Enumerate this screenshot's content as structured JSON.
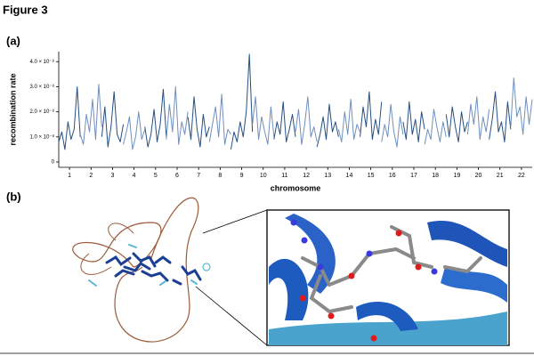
{
  "figure_title": "Figure 3",
  "panel_labels": [
    "(a)",
    "(b)"
  ],
  "chart_data": {
    "type": "line",
    "ylabel": "recombination rate",
    "xlabel": "chromosome",
    "categories": [
      "1",
      "2",
      "3",
      "4",
      "5",
      "6",
      "7",
      "8",
      "9",
      "10",
      "11",
      "12",
      "13",
      "14",
      "15",
      "16",
      "17",
      "18",
      "19",
      "20",
      "21",
      "22"
    ],
    "colors": [
      "#244f84",
      "#6f8fbf"
    ],
    "values": [
      [
        8e-09,
        1.2e-08,
        5e-09,
        1.6e-08,
        9e-09,
        1.3e-08,
        3e-08,
        1e-08
      ],
      [
        1.1e-08,
        7e-09,
        1.9e-08,
        1.2e-08,
        2.5e-08,
        9e-09,
        3.1e-08,
        1.4e-08
      ],
      [
        1e-08,
        2.2e-08,
        6e-09,
        1.4e-08,
        2.8e-08,
        1.1e-08,
        8e-09,
        1.5e-08
      ],
      [
        7e-09,
        1.2e-08,
        1.8e-08,
        5e-09,
        1e-08,
        2e-08,
        9e-09,
        1.3e-08
      ],
      [
        1.4e-08,
        6e-09,
        1.1e-08,
        2.1e-08,
        8e-09,
        1.5e-08,
        2.9e-08,
        1e-08
      ],
      [
        9e-09,
        2.3e-08,
        1.2e-08,
        3e-08,
        7e-09,
        1.6e-08,
        1.1e-08,
        2e-08
      ],
      [
        1.8e-08,
        9e-09,
        2.6e-08,
        1.3e-08,
        6e-09,
        1.9e-08,
        1e-08,
        1.4e-08
      ],
      [
        8e-09,
        1.5e-08,
        2.2e-08,
        1e-08,
        2.7e-08,
        7e-09,
        1.3e-08,
        1.1e-08
      ],
      [
        5e-09,
        1.2e-08,
        8e-09,
        1.6e-08,
        1e-08,
        2e-08,
        4.3e-08,
        1.2e-08
      ],
      [
        1.5e-08,
        2.6e-08,
        9e-09,
        1.8e-08,
        1.2e-08,
        7e-09,
        2.2e-08,
        1e-08
      ],
      [
        9e-09,
        1.6e-08,
        1.1e-08,
        2.4e-08,
        8e-09,
        1.3e-08,
        1.9e-08,
        1e-08
      ],
      [
        1.2e-08,
        2.1e-08,
        7e-09,
        1.5e-08,
        2.6e-08,
        1e-08,
        1.4e-08,
        8e-09
      ],
      [
        6e-09,
        1.1e-08,
        1.8e-08,
        9e-09,
        2.3e-08,
        1.2e-08,
        1.6e-08,
        1e-08
      ],
      [
        1.3e-08,
        8e-09,
        2e-08,
        1.1e-08,
        2.5e-08,
        9e-09,
        1.5e-08,
        1.2e-08
      ],
      [
        1e-08,
        2.2e-08,
        1.4e-08,
        2.8e-08,
        9e-09,
        1.7e-08,
        1.1e-08,
        2.4e-08
      ],
      [
        8e-09,
        1.5e-08,
        1e-08,
        2.3e-08,
        1.2e-08,
        6e-09,
        1.8e-08,
        1.1e-08
      ],
      [
        1.6e-08,
        9e-09,
        2.4e-08,
        1.1e-08,
        1.7e-08,
        8e-09,
        2e-08,
        1.3e-08
      ],
      [
        7e-09,
        1.3e-08,
        9e-09,
        2.1e-08,
        1.4e-08,
        8e-09,
        1.6e-08,
        1e-08
      ],
      [
        1.9e-08,
        1e-08,
        2.2e-08,
        1.4e-08,
        8e-09,
        2e-08,
        1.2e-08,
        1.6e-08
      ],
      [
        1.1e-08,
        2.3e-08,
        1.5e-08,
        2.6e-08,
        9e-09,
        1.8e-08,
        1.2e-08,
        2.1e-08
      ],
      [
        9e-09,
        1.7e-08,
        2.8e-08,
        1.2e-08,
        1.6e-08,
        8e-09,
        2.4e-08,
        1.3e-08
      ],
      [
        1.4e-08,
        3.35e-08,
        1.8e-08,
        2.2e-08,
        1.1e-08,
        2.6e-08,
        1.5e-08,
        2.5e-08
      ]
    ],
    "ylim": [
      0,
      4.4e-08
    ],
    "yticks": [
      0,
      {
        "value": 1e-08,
        "label": "1.0 × 10⁻⁸"
      },
      {
        "value": 2e-08,
        "label": "2.0 × 10⁻⁸"
      },
      {
        "value": 3e-08,
        "label": "3.0 × 10⁻⁸"
      },
      {
        "value": 4e-08,
        "label": "4.0 × 10⁻⁸"
      }
    ]
  }
}
